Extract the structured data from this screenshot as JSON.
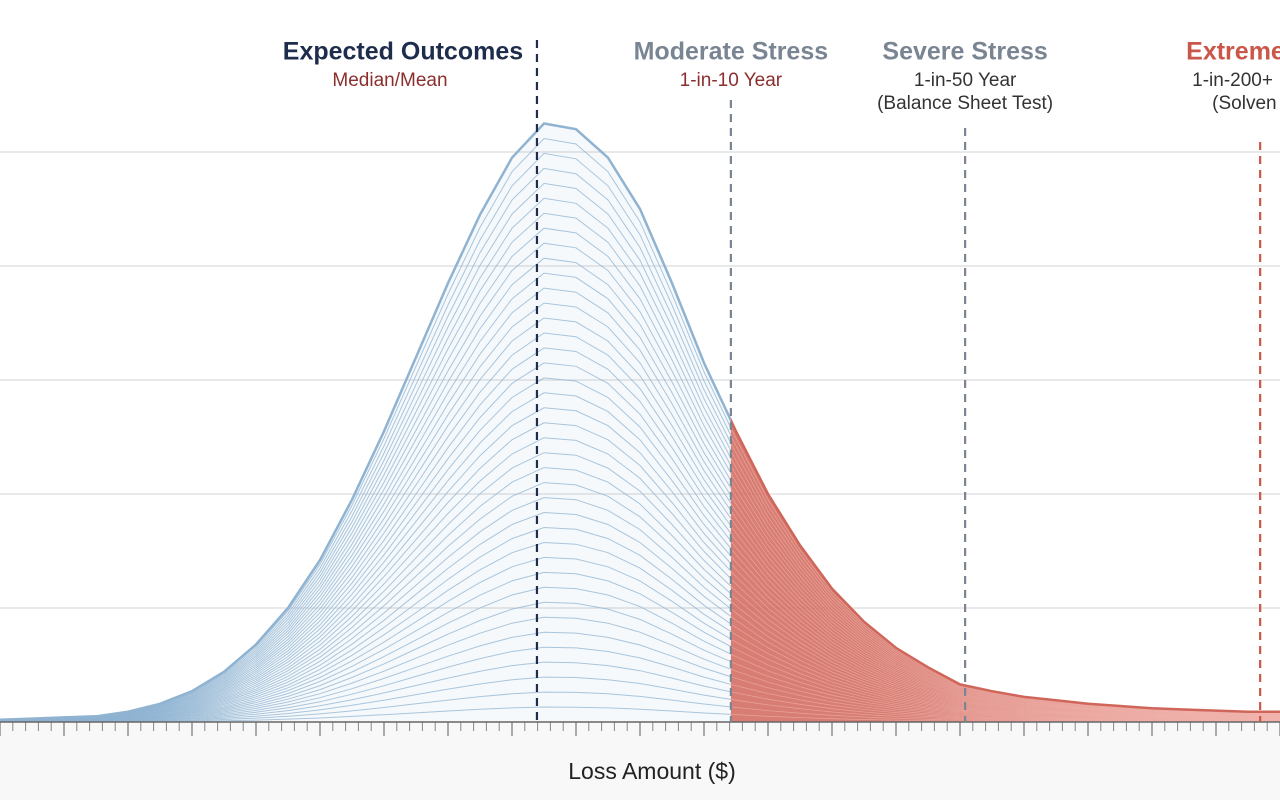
{
  "chart_data": {
    "type": "area",
    "x_label": "Loss Amount ($)",
    "xlim": [
      0,
      20
    ],
    "xticks": [
      0,
      1,
      2,
      3,
      4,
      5,
      6,
      7,
      8,
      9,
      10,
      11,
      12,
      13,
      14,
      15,
      16,
      17,
      18,
      19,
      20
    ],
    "ylim": [
      0,
      5.5
    ],
    "yticks": [
      1,
      2,
      3,
      4,
      5
    ],
    "grid": true,
    "x": [
      0,
      0.5,
      1,
      1.5,
      2,
      2.5,
      3,
      3.5,
      4,
      4.5,
      5,
      5.5,
      6,
      6.5,
      7,
      7.5,
      8,
      8.5,
      9,
      9.5,
      10,
      10.5,
      11,
      11.5,
      12,
      12.5,
      13,
      13.5,
      14,
      14.5,
      15,
      15.5,
      16,
      16.5,
      17,
      17.5,
      18,
      18.5,
      19,
      19.5,
      20
    ],
    "values": [
      0.02,
      0.03,
      0.04,
      0.05,
      0.09,
      0.16,
      0.27,
      0.44,
      0.68,
      1.0,
      1.42,
      1.95,
      2.55,
      3.2,
      3.85,
      4.45,
      4.95,
      5.25,
      5.2,
      4.95,
      4.5,
      3.85,
      3.15,
      2.55,
      2.0,
      1.55,
      1.17,
      0.88,
      0.65,
      0.48,
      0.33,
      0.27,
      0.22,
      0.19,
      0.16,
      0.14,
      0.12,
      0.11,
      0.1,
      0.09,
      0.09
    ],
    "color": "#8fb3d1",
    "tail_color": "#d0665a",
    "markers": [
      {
        "x": 8.39,
        "title": "Expected Outcomes",
        "lines": [
          "Median/Mean"
        ],
        "color": "#1f2d4d",
        "title_color": "#1f2d4d",
        "sub_color": "#8b2e2e"
      },
      {
        "x": 11.42,
        "title": "Moderate Stress",
        "lines": [
          "1-in-10 Year"
        ],
        "color": "#7a8593",
        "title_color": "#7a8593",
        "sub_color": "#8b2e2e"
      },
      {
        "x": 15.08,
        "title": "Severe Stress",
        "lines": [
          "1-in-50 Year",
          "(Balance Sheet Test)"
        ],
        "color": "#7a8593",
        "title_color": "#7a8593",
        "sub_color": "#333333"
      },
      {
        "x": 19.69,
        "title": "Extreme",
        "lines": [
          "1-in-200+",
          "(Solven"
        ],
        "color": "#c9574a",
        "title_color": "#c9574a",
        "sub_color": "#333333"
      }
    ]
  }
}
